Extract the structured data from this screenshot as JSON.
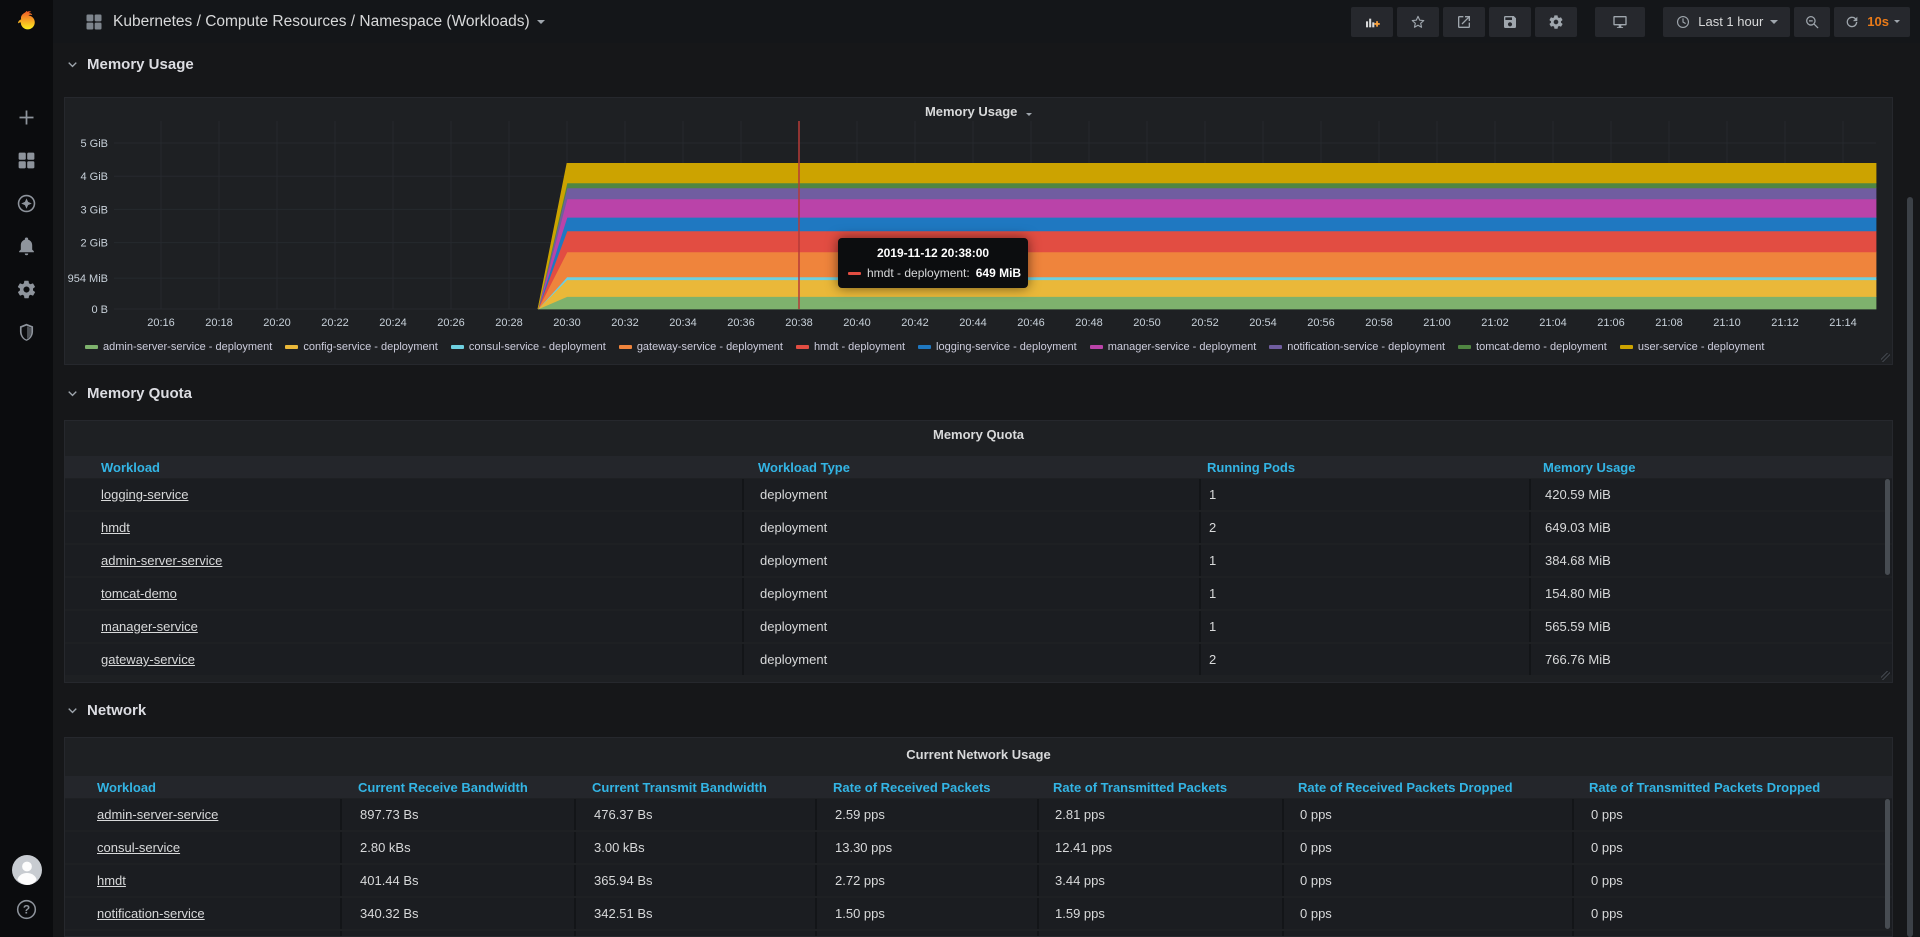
{
  "colors": {
    "page_bg": "#161719",
    "sidebar_bg": "#0b0c0e",
    "panel_bg": "#1e2023",
    "table_header_blue": "#33b5e5",
    "refresh_orange": "#eb7b18",
    "crosshair_red": "#b53b38",
    "axis_text": "#c7d0d9",
    "grid_line": "#26292e"
  },
  "sidebar": {
    "logo_icon": "grafana-logo",
    "items": [
      {
        "name": "create",
        "icon": "plus-icon"
      },
      {
        "name": "dashboards",
        "icon": "apps-icon"
      },
      {
        "name": "explore",
        "icon": "compass-icon"
      },
      {
        "name": "alerting",
        "icon": "bell-icon"
      },
      {
        "name": "configuration",
        "icon": "gear-icon"
      },
      {
        "name": "server-admin",
        "icon": "shield-icon"
      }
    ],
    "bottom": [
      {
        "name": "user-avatar",
        "icon": "avatar-icon"
      },
      {
        "name": "help",
        "icon": "help-icon"
      }
    ]
  },
  "navbar": {
    "title": "Kubernetes / Compute Resources / Namespace (Workloads)",
    "time_range_label": "Last 1 hour",
    "refresh_label": "10s",
    "buttons": [
      "add-panel",
      "star",
      "share",
      "save",
      "settings",
      "cycle-view",
      "time-range",
      "zoom-out",
      "refresh"
    ]
  },
  "sections": [
    {
      "title": "Memory Usage"
    },
    {
      "title": "Memory Quota"
    },
    {
      "title": "Network"
    }
  ],
  "chart_data": {
    "type": "area",
    "stacked": true,
    "title": "Memory Usage",
    "x_ticks": [
      "20:16",
      "20:18",
      "20:20",
      "20:22",
      "20:24",
      "20:26",
      "20:28",
      "20:30",
      "20:32",
      "20:34",
      "20:36",
      "20:38",
      "20:40",
      "20:42",
      "20:44",
      "20:46",
      "20:48",
      "20:50",
      "20:52",
      "20:54",
      "20:56",
      "20:58",
      "21:00",
      "21:02",
      "21:04",
      "21:06",
      "21:08",
      "21:10",
      "21:12",
      "21:14"
    ],
    "y_ticks": [
      {
        "label": "0 B",
        "mib": 0
      },
      {
        "label": "954 MiB",
        "mib": 954
      },
      {
        "label": "2 GiB",
        "mib": 2048
      },
      {
        "label": "3 GiB",
        "mib": 3072
      },
      {
        "label": "4 GiB",
        "mib": 4096
      },
      {
        "label": "5 GiB",
        "mib": 5120
      }
    ],
    "ymax_mib": 5800,
    "grid": true,
    "legend_position": "bottom",
    "rise_start": "20:29",
    "rise_full": "20:30",
    "crosshair_time": "20:38",
    "series": [
      {
        "name": "admin-server-service - deployment",
        "color": "#7EB26D",
        "value_mib": 384.68
      },
      {
        "name": "config-service - deployment",
        "color": "#EAB839",
        "value_mib": 520
      },
      {
        "name": "consul-service - deployment",
        "color": "#6ED0E0",
        "value_mib": 90
      },
      {
        "name": "gateway-service - deployment",
        "color": "#EF843C",
        "value_mib": 766.76
      },
      {
        "name": "hmdt - deployment",
        "color": "#E24D42",
        "value_mib": 649.03
      },
      {
        "name": "logging-service - deployment",
        "color": "#1F78C1",
        "value_mib": 420.59
      },
      {
        "name": "manager-service - deployment",
        "color": "#BA43A9",
        "value_mib": 565.59
      },
      {
        "name": "notification-service - deployment",
        "color": "#705DA0",
        "value_mib": 340
      },
      {
        "name": "tomcat-demo - deployment",
        "color": "#508642",
        "value_mib": 154.8
      },
      {
        "name": "user-service - deployment",
        "color": "#CCA300",
        "value_mib": 600
      }
    ]
  },
  "tooltip": {
    "timestamp": "2019-11-12 20:38:00",
    "series_label": "hmdt - deployment:",
    "value": "649 MiB",
    "marker_color": "#E24D42"
  },
  "memory_quota_table": {
    "panel_title": "Memory Quota",
    "columns": [
      "Workload",
      "Workload Type",
      "Running Pods",
      "Memory Usage"
    ],
    "rows": [
      [
        "logging-service",
        "deployment",
        "1",
        "420.59 MiB"
      ],
      [
        "hmdt",
        "deployment",
        "2",
        "649.03 MiB"
      ],
      [
        "admin-server-service",
        "deployment",
        "1",
        "384.68 MiB"
      ],
      [
        "tomcat-demo",
        "deployment",
        "1",
        "154.80 MiB"
      ],
      [
        "manager-service",
        "deployment",
        "1",
        "565.59 MiB"
      ],
      [
        "gateway-service",
        "deployment",
        "2",
        "766.76 MiB"
      ]
    ]
  },
  "network_table": {
    "panel_title": "Current Network Usage",
    "columns": [
      "Workload",
      "Current Receive Bandwidth",
      "Current Transmit Bandwidth",
      "Rate of Received Packets",
      "Rate of Transmitted Packets",
      "Rate of Received Packets Dropped",
      "Rate of Transmitted Packets Dropped"
    ],
    "rows": [
      [
        "admin-server-service",
        "897.73 Bs",
        "476.37 Bs",
        "2.59 pps",
        "2.81 pps",
        "0 pps",
        "0 pps"
      ],
      [
        "consul-service",
        "2.80 kBs",
        "3.00 kBs",
        "13.30 pps",
        "12.41 pps",
        "0 pps",
        "0 pps"
      ],
      [
        "hmdt",
        "401.44 Bs",
        "365.94 Bs",
        "2.72 pps",
        "3.44 pps",
        "0 pps",
        "0 pps"
      ],
      [
        "notification-service",
        "340.32 Bs",
        "342.51 Bs",
        "1.50 pps",
        "1.59 pps",
        "0 pps",
        "0 pps"
      ]
    ],
    "partial_next_row": true
  }
}
